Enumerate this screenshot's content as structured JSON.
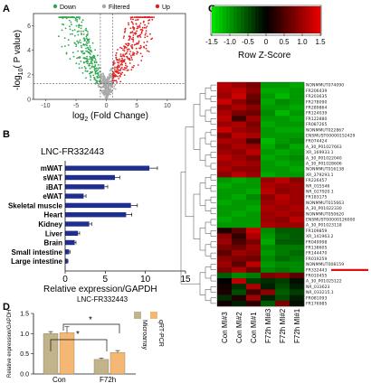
{
  "colors": {
    "down": "#2fa84f",
    "filtered": "#a8a8a8",
    "up": "#e02020",
    "hbar": "#1f2f8f",
    "microarray": "#c2b48a",
    "qrtpcr": "#f4b774",
    "highlight": "#e01010"
  },
  "panel_labels": [
    "A",
    "B",
    "C",
    "D"
  ],
  "chart_data": [
    {
      "panel": "A",
      "type": "scatter",
      "legend": [
        "Down",
        "Filtered",
        "Up"
      ],
      "ylabel_main": "-log",
      "ylabel_sub": "10",
      "ylabel_tail": "( P value)",
      "xlabel_main": "log",
      "xlabel_sub": "2",
      "xlabel_tail": " (Fold Change)",
      "x_ticks": [
        "-10",
        "-5",
        "0",
        "5",
        "10"
      ],
      "y_ticks": [
        "0",
        "2",
        "4",
        "6"
      ],
      "xlim": [
        -12,
        13
      ],
      "ylim": [
        0,
        7
      ],
      "fold_cutoffs": [
        -1,
        1
      ],
      "p_cutoff": 1.3
    },
    {
      "panel": "B",
      "type": "bar",
      "orientation": "horizontal",
      "title": "LNC-FR332443",
      "categories": [
        "mWAT",
        "sWAT",
        "iBAT",
        "eWAT",
        "Skeletal muscle",
        "Heart",
        "Kidney",
        "Liver",
        "Brain",
        "Small intestine",
        "Large intestine"
      ],
      "values": [
        10.5,
        6.2,
        4.9,
        2.3,
        8.2,
        7.6,
        3.0,
        1.6,
        1.2,
        0.5,
        0.3
      ],
      "errors": [
        1.0,
        0.6,
        0.4,
        0.3,
        0.8,
        0.7,
        0.3,
        0.2,
        0.15,
        0.1,
        0.05
      ],
      "x_ticks": [
        "0",
        "5",
        "10",
        "15"
      ],
      "xlim": [
        0,
        15
      ],
      "xlabel": "Relative expression/GAPDH",
      "sublabel": "LNC-FR332443"
    },
    {
      "panel": "C",
      "type": "heatmap",
      "colorbar_title": "Row Z-Score",
      "colorbar_ticks": [
        "-1.5",
        "-1.0",
        "-0.5",
        "0",
        "0.5",
        "1.0",
        "1.5"
      ],
      "vmin": -1.5,
      "vmax": 1.5,
      "columns": [
        "Con MI#3",
        "Con MI#2",
        "Con MI#1",
        "F72h MI#3",
        "F72h MI#2",
        "F72h MI#1"
      ],
      "rows": [
        "NONMMUT074090",
        "FR206439",
        "FR203635",
        "FR278090",
        "FR289864",
        "FR124039",
        "FR122880",
        "FR087265",
        "NONMMUT022867",
        "ENSMUST00000152429",
        "FR074424",
        "A_30_P01027663",
        "XR_169933.1",
        "A_30_P01022040",
        "A_30_P01028606",
        "NONMMUT016138",
        "XR_379293.1",
        "FR226457",
        "NR_015546",
        "NR_027920.1",
        "FR183175",
        "NONMMUT015663",
        "A_30_P01022330",
        "NONMMUT050620",
        "ENSMUST00000126000",
        "A_30_P01023118",
        "FR109859",
        "XR_141963.2",
        "FR049998",
        "FR138605",
        "FR144470",
        "FR019259",
        "NONMMUT008159",
        "FR332443",
        "FR010455",
        "A_30_P01025122",
        "NR_033623",
        "NR_033215.1",
        "FR081093",
        "FR176985"
      ],
      "highlight_row": "FR332443",
      "z": [
        [
          1.2,
          1.0,
          0.8,
          -1.0,
          -1.0,
          -1.1
        ],
        [
          1.1,
          1.2,
          0.9,
          -1.1,
          -1.1,
          -1.0
        ],
        [
          1.0,
          1.3,
          0.7,
          -1.0,
          -1.2,
          -1.0
        ],
        [
          1.3,
          0.9,
          0.6,
          -1.1,
          -0.9,
          -1.0
        ],
        [
          0.9,
          1.1,
          0.9,
          -1.0,
          -1.0,
          -1.1
        ],
        [
          1.1,
          0.8,
          0.7,
          -0.9,
          -1.2,
          -1.0
        ],
        [
          1.2,
          0.4,
          1.0,
          -1.0,
          -1.0,
          -1.1
        ],
        [
          1.0,
          1.1,
          0.8,
          -1.1,
          -1.0,
          -1.0
        ],
        [
          1.3,
          1.0,
          0.9,
          -1.0,
          -1.1,
          -1.1
        ],
        [
          0.8,
          1.2,
          1.1,
          -1.0,
          -1.0,
          -1.0
        ],
        [
          1.1,
          1.0,
          0.5,
          -1.2,
          -1.0,
          -0.9
        ],
        [
          0.9,
          1.1,
          1.0,
          -1.1,
          -0.9,
          -1.1
        ],
        [
          1.0,
          0.9,
          1.2,
          -1.0,
          -1.1,
          -1.0
        ],
        [
          1.2,
          1.0,
          0.8,
          -1.1,
          -1.0,
          -0.9
        ],
        [
          1.0,
          1.1,
          1.0,
          -1.0,
          -1.1,
          -1.0
        ],
        [
          1.1,
          0.9,
          0.9,
          -1.0,
          -1.0,
          -1.1
        ],
        [
          0.9,
          1.2,
          1.0,
          -1.1,
          -1.0,
          -1.0
        ],
        [
          -1.0,
          -1.1,
          -1.0,
          1.0,
          1.2,
          0.9
        ],
        [
          -1.1,
          -1.0,
          -1.0,
          1.1,
          1.0,
          1.0
        ],
        [
          -1.0,
          -1.0,
          -1.1,
          1.2,
          0.9,
          1.0
        ],
        [
          -1.0,
          -1.1,
          -0.9,
          0.9,
          1.2,
          1.0
        ],
        [
          -1.1,
          -1.0,
          -1.0,
          1.0,
          1.1,
          1.0
        ],
        [
          -1.0,
          -1.0,
          -1.1,
          1.1,
          1.0,
          1.1
        ],
        [
          -1.0,
          -1.1,
          -1.0,
          1.0,
          1.1,
          1.0
        ],
        [
          -1.1,
          -1.0,
          -1.0,
          1.0,
          0.9,
          1.2
        ],
        [
          -1.0,
          -1.0,
          -1.0,
          1.1,
          1.0,
          1.0
        ],
        [
          0.2,
          0.6,
          1.3,
          -0.9,
          -0.6,
          -0.6
        ],
        [
          0.9,
          0.3,
          1.1,
          -1.0,
          -0.7,
          -0.6
        ],
        [
          1.0,
          0.5,
          0.8,
          -1.1,
          -0.6,
          -0.6
        ],
        [
          0.8,
          0.7,
          1.0,
          -0.9,
          -0.8,
          -0.8
        ],
        [
          0.6,
          1.0,
          0.9,
          -1.0,
          -0.8,
          -0.7
        ],
        [
          0.9,
          0.8,
          0.7,
          -0.9,
          -0.7,
          -0.8
        ],
        [
          1.0,
          0.6,
          1.2,
          -1.0,
          -0.9,
          -0.9
        ],
        [
          0.8,
          1.1,
          0.7,
          -0.9,
          -0.8,
          -0.9
        ],
        [
          -0.6,
          -0.9,
          -0.8,
          0.8,
          0.9,
          0.6
        ],
        [
          0.0,
          1.2,
          -0.4,
          -0.3,
          -0.4,
          -0.1
        ],
        [
          0.1,
          -0.3,
          1.1,
          -0.2,
          -0.5,
          -0.2
        ],
        [
          0.2,
          -0.5,
          0.4,
          0.9,
          -0.6,
          -0.4
        ],
        [
          -0.3,
          0.2,
          1.0,
          -0.2,
          -0.5,
          -0.2
        ],
        [
          0.1,
          -0.2,
          0.3,
          -0.6,
          0.8,
          -0.1
        ]
      ]
    },
    {
      "panel": "D",
      "type": "bar",
      "categories": [
        "Con",
        "F72h"
      ],
      "series": [
        {
          "name": "Microarray",
          "values": [
            1.0,
            0.36
          ],
          "errors": [
            0.05,
            0.03
          ]
        },
        {
          "name": "qRT-PCR",
          "values": [
            1.02,
            0.53
          ],
          "errors": [
            0.15,
            0.05
          ]
        }
      ],
      "ylabel": "Relative expression/GAPDH",
      "y_ticks": [
        "0.0",
        "0.5",
        "1.0",
        "1.5"
      ],
      "ylim": [
        0,
        1.5
      ],
      "significance": [
        "*",
        "*"
      ]
    }
  ]
}
